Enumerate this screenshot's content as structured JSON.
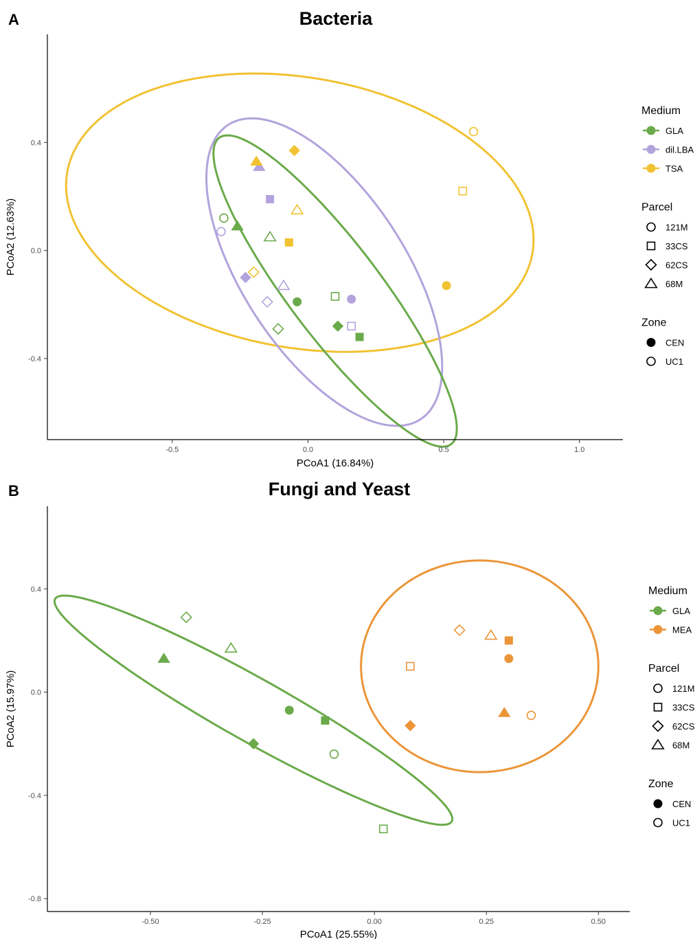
{
  "chart_data": [
    {
      "type": "scatter",
      "panel_label": "A",
      "title": "Bacteria",
      "xlabel": "PCoA1 (16.84%)",
      "ylabel": "PCoA2 (12.63%)",
      "xlim": [
        -0.96,
        1.16
      ],
      "ylim": [
        -0.7,
        0.8
      ],
      "xticks": [
        -0.5,
        0.0,
        0.5,
        1.0
      ],
      "xtick_labels": [
        "-0.5",
        "0.0",
        "0.5",
        "1.0"
      ],
      "yticks": [
        -0.4,
        0.0,
        0.4
      ],
      "ytick_labels": [
        "-0.4",
        "0.0",
        "0.4"
      ],
      "grid": false,
      "legend": [
        {
          "title": "Medium",
          "kind": "color",
          "entries": [
            {
              "label": "GLA",
              "color": "#6aaa4a"
            },
            {
              "label": "dil.LBA",
              "color": "#b2a3dc"
            },
            {
              "label": "TSA",
              "color": "#f1c232"
            }
          ]
        },
        {
          "title": "Parcel",
          "kind": "shape",
          "entries": [
            {
              "label": "121M",
              "shape": "circle"
            },
            {
              "label": "33CS",
              "shape": "square"
            },
            {
              "label": "62CS",
              "shape": "diamond"
            },
            {
              "label": "68M",
              "shape": "triangle"
            }
          ]
        },
        {
          "title": "Zone",
          "kind": "fill",
          "entries": [
            {
              "label": "CEN",
              "filled": true
            },
            {
              "label": "UC1",
              "filled": false
            }
          ]
        }
      ],
      "ellipses": [
        {
          "medium": "TSA",
          "center": [
            -0.03,
            0.14
          ],
          "rx": 0.87,
          "ry": 0.5,
          "angle_deg": -10
        },
        {
          "medium": "dil.LBA",
          "center": [
            0.06,
            -0.08
          ],
          "rx": 0.65,
          "ry": 0.3,
          "angle_deg": -57
        },
        {
          "medium": "GLA",
          "center": [
            0.1,
            -0.15
          ],
          "rx": 0.71,
          "ry": 0.17,
          "angle_deg": -53
        }
      ],
      "points": [
        {
          "x": -0.31,
          "y": 0.12,
          "medium": "GLA",
          "parcel": "121M",
          "zone": "UC1"
        },
        {
          "x": -0.26,
          "y": 0.09,
          "medium": "GLA",
          "parcel": "68M",
          "zone": "CEN"
        },
        {
          "x": -0.14,
          "y": 0.05,
          "medium": "GLA",
          "parcel": "68M",
          "zone": "UC1"
        },
        {
          "x": -0.04,
          "y": -0.19,
          "medium": "GLA",
          "parcel": "121M",
          "zone": "CEN"
        },
        {
          "x": 0.1,
          "y": -0.17,
          "medium": "GLA",
          "parcel": "33CS",
          "zone": "UC1"
        },
        {
          "x": 0.11,
          "y": -0.28,
          "medium": "GLA",
          "parcel": "62CS",
          "zone": "CEN"
        },
        {
          "x": 0.19,
          "y": -0.32,
          "medium": "GLA",
          "parcel": "33CS",
          "zone": "CEN"
        },
        {
          "x": -0.11,
          "y": -0.29,
          "medium": "GLA",
          "parcel": "62CS",
          "zone": "UC1"
        },
        {
          "x": -0.32,
          "y": 0.07,
          "medium": "dil.LBA",
          "parcel": "121M",
          "zone": "UC1"
        },
        {
          "x": -0.18,
          "y": 0.31,
          "medium": "dil.LBA",
          "parcel": "68M",
          "zone": "CEN"
        },
        {
          "x": -0.14,
          "y": 0.19,
          "medium": "dil.LBA",
          "parcel": "33CS",
          "zone": "CEN"
        },
        {
          "x": -0.23,
          "y": -0.1,
          "medium": "dil.LBA",
          "parcel": "62CS",
          "zone": "CEN"
        },
        {
          "x": -0.09,
          "y": -0.13,
          "medium": "dil.LBA",
          "parcel": "68M",
          "zone": "UC1"
        },
        {
          "x": -0.15,
          "y": -0.19,
          "medium": "dil.LBA",
          "parcel": "62CS",
          "zone": "UC1"
        },
        {
          "x": 0.16,
          "y": -0.18,
          "medium": "dil.LBA",
          "parcel": "121M",
          "zone": "CEN"
        },
        {
          "x": 0.16,
          "y": -0.28,
          "medium": "dil.LBA",
          "parcel": "33CS",
          "zone": "UC1"
        },
        {
          "x": -0.19,
          "y": 0.33,
          "medium": "TSA",
          "parcel": "68M",
          "zone": "CEN"
        },
        {
          "x": -0.05,
          "y": 0.37,
          "medium": "TSA",
          "parcel": "62CS",
          "zone": "CEN"
        },
        {
          "x": -0.04,
          "y": 0.15,
          "medium": "TSA",
          "parcel": "68M",
          "zone": "UC1"
        },
        {
          "x": -0.07,
          "y": 0.03,
          "medium": "TSA",
          "parcel": "33CS",
          "zone": "CEN"
        },
        {
          "x": -0.2,
          "y": -0.08,
          "medium": "TSA",
          "parcel": "62CS",
          "zone": "UC1"
        },
        {
          "x": 0.61,
          "y": 0.44,
          "medium": "TSA",
          "parcel": "121M",
          "zone": "UC1"
        },
        {
          "x": 0.57,
          "y": 0.22,
          "medium": "TSA",
          "parcel": "33CS",
          "zone": "UC1"
        },
        {
          "x": 0.51,
          "y": -0.13,
          "medium": "TSA",
          "parcel": "121M",
          "zone": "CEN"
        }
      ]
    },
    {
      "type": "scatter",
      "panel_label": "B",
      "title": "Fungi and Yeast",
      "xlabel": "PCoA1 (25.55%)",
      "ylabel": "PCoA2 (15.97%)",
      "xlim": [
        -0.73,
        0.57
      ],
      "ylim": [
        -0.85,
        0.72
      ],
      "xticks": [
        -0.5,
        -0.25,
        0.0,
        0.25,
        0.5
      ],
      "xtick_labels": [
        "-0.50",
        "-0.25",
        "0.00",
        "0.25",
        "0.50"
      ],
      "yticks": [
        -0.8,
        -0.4,
        0.0,
        0.4
      ],
      "ytick_labels": [
        "-0.8",
        "-0.4",
        "0.0",
        "0.4"
      ],
      "grid": false,
      "legend": [
        {
          "title": "Medium",
          "kind": "color",
          "entries": [
            {
              "label": "GLA",
              "color": "#6aaa4a"
            },
            {
              "label": "MEA",
              "color": "#eb9538"
            }
          ]
        },
        {
          "title": "Parcel",
          "kind": "shape",
          "entries": [
            {
              "label": "121M",
              "shape": "circle"
            },
            {
              "label": "33CS",
              "shape": "square"
            },
            {
              "label": "62CS",
              "shape": "diamond"
            },
            {
              "label": "68M",
              "shape": "triangle"
            }
          ]
        },
        {
          "title": "Zone",
          "kind": "fill",
          "entries": [
            {
              "label": "CEN",
              "filled": true
            },
            {
              "label": "UC1",
              "filled": false
            }
          ]
        }
      ],
      "ellipses": [
        {
          "medium": "GLA",
          "center": [
            -0.27,
            -0.07
          ],
          "rx": 0.62,
          "ry": 0.1,
          "angle_deg": -45
        },
        {
          "medium": "MEA",
          "center": [
            0.235,
            0.1
          ],
          "rx": 0.265,
          "ry": 0.41,
          "angle_deg": 0
        }
      ],
      "points": [
        {
          "x": -0.42,
          "y": 0.29,
          "medium": "GLA",
          "parcel": "62CS",
          "zone": "UC1"
        },
        {
          "x": -0.32,
          "y": 0.17,
          "medium": "GLA",
          "parcel": "68M",
          "zone": "UC1"
        },
        {
          "x": -0.47,
          "y": 0.13,
          "medium": "GLA",
          "parcel": "68M",
          "zone": "CEN"
        },
        {
          "x": -0.19,
          "y": -0.07,
          "medium": "GLA",
          "parcel": "121M",
          "zone": "CEN"
        },
        {
          "x": -0.11,
          "y": -0.11,
          "medium": "GLA",
          "parcel": "33CS",
          "zone": "CEN"
        },
        {
          "x": -0.27,
          "y": -0.2,
          "medium": "GLA",
          "parcel": "62CS",
          "zone": "CEN"
        },
        {
          "x": -0.09,
          "y": -0.24,
          "medium": "GLA",
          "parcel": "121M",
          "zone": "UC1"
        },
        {
          "x": 0.02,
          "y": -0.53,
          "medium": "GLA",
          "parcel": "33CS",
          "zone": "UC1"
        },
        {
          "x": 0.19,
          "y": 0.24,
          "medium": "MEA",
          "parcel": "62CS",
          "zone": "UC1"
        },
        {
          "x": 0.26,
          "y": 0.22,
          "medium": "MEA",
          "parcel": "68M",
          "zone": "UC1"
        },
        {
          "x": 0.3,
          "y": 0.2,
          "medium": "MEA",
          "parcel": "33CS",
          "zone": "CEN"
        },
        {
          "x": 0.3,
          "y": 0.13,
          "medium": "MEA",
          "parcel": "121M",
          "zone": "CEN"
        },
        {
          "x": 0.08,
          "y": 0.1,
          "medium": "MEA",
          "parcel": "33CS",
          "zone": "UC1"
        },
        {
          "x": 0.29,
          "y": -0.08,
          "medium": "MEA",
          "parcel": "68M",
          "zone": "CEN"
        },
        {
          "x": 0.35,
          "y": -0.09,
          "medium": "MEA",
          "parcel": "121M",
          "zone": "UC1"
        },
        {
          "x": 0.08,
          "y": -0.13,
          "medium": "MEA",
          "parcel": "62CS",
          "zone": "CEN"
        }
      ]
    }
  ]
}
